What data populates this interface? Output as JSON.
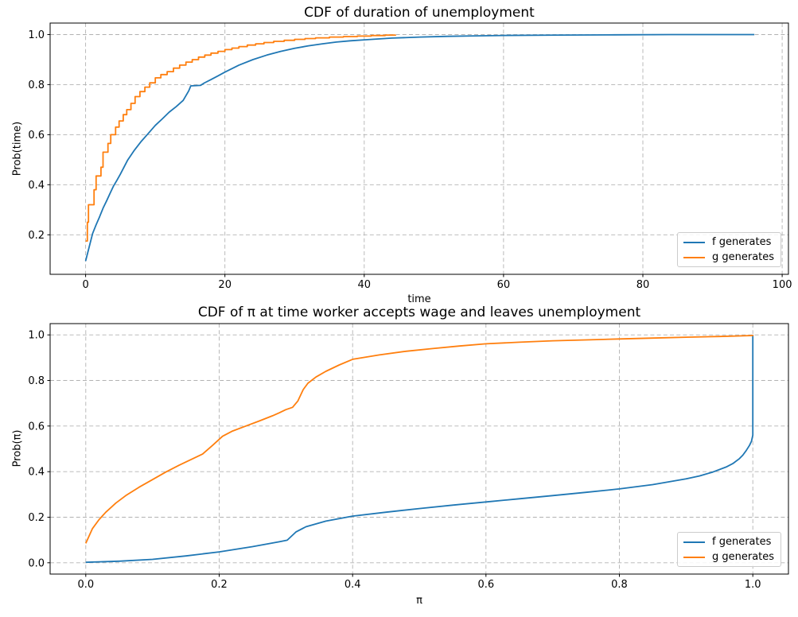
{
  "figure": {
    "background": "#ffffff"
  },
  "chart_data": [
    {
      "type": "line",
      "name": "cdf-duration-unemployment",
      "title": "CDF of duration of unemployment",
      "xlabel": "time",
      "ylabel": "Prob(time)",
      "xlim": [
        -5.1,
        100.9
      ],
      "ylim": [
        0.042,
        1.046
      ],
      "grid": true,
      "legend_position": "lower right",
      "xticks": {
        "values": [
          0,
          20,
          40,
          60,
          80,
          100
        ],
        "labels": [
          "0",
          "20",
          "40",
          "60",
          "80",
          "100"
        ]
      },
      "yticks": {
        "values": [
          0.2,
          0.4,
          0.6,
          0.8,
          1.0
        ],
        "labels": [
          "0.2",
          "0.4",
          "0.6",
          "0.8",
          "1.0"
        ]
      },
      "series": [
        {
          "name": "f generates",
          "color": "#1f77b4",
          "step": false,
          "x": [
            0,
            0.5,
            1,
            1.5,
            2,
            2.5,
            3,
            3.5,
            4,
            4.5,
            5,
            6,
            7,
            8,
            9,
            10,
            11,
            12,
            13,
            14,
            14.8,
            15.1,
            16.5,
            17,
            18,
            19,
            20,
            22,
            24,
            26,
            28,
            30,
            32,
            34,
            36,
            38,
            40,
            44,
            48,
            52,
            56,
            60,
            68,
            76,
            84,
            96
          ],
          "y": [
            0.095,
            0.15,
            0.205,
            0.24,
            0.272,
            0.306,
            0.335,
            0.365,
            0.395,
            0.418,
            0.443,
            0.497,
            0.538,
            0.574,
            0.605,
            0.637,
            0.663,
            0.69,
            0.712,
            0.737,
            0.775,
            0.795,
            0.797,
            0.806,
            0.82,
            0.835,
            0.85,
            0.878,
            0.9,
            0.918,
            0.933,
            0.945,
            0.955,
            0.963,
            0.97,
            0.975,
            0.979,
            0.986,
            0.99,
            0.993,
            0.995,
            0.9965,
            0.998,
            0.999,
            1.0,
            1.0
          ]
        },
        {
          "name": "g generates",
          "color": "#ff7f0e",
          "step": true,
          "x": [
            0,
            0.25,
            0.4,
            1.2,
            1.5,
            2.2,
            2.5,
            3.2,
            3.6,
            4.3,
            4.8,
            5.4,
            5.9,
            6.5,
            7.1,
            7.8,
            8.5,
            9.2,
            10,
            10.8,
            11.7,
            12.6,
            13.5,
            14.4,
            15.3,
            16.2,
            17.1,
            18,
            19,
            20,
            21,
            22,
            23.2,
            24.4,
            25.6,
            27,
            28.5,
            30,
            31.5,
            33,
            35,
            37,
            39,
            41,
            43,
            44.5
          ],
          "y": [
            0.175,
            0.25,
            0.32,
            0.38,
            0.435,
            0.47,
            0.53,
            0.565,
            0.6,
            0.63,
            0.655,
            0.68,
            0.7,
            0.725,
            0.752,
            0.772,
            0.79,
            0.807,
            0.827,
            0.84,
            0.852,
            0.866,
            0.878,
            0.89,
            0.9,
            0.91,
            0.918,
            0.926,
            0.933,
            0.94,
            0.946,
            0.952,
            0.958,
            0.963,
            0.968,
            0.973,
            0.977,
            0.981,
            0.984,
            0.987,
            0.99,
            0.992,
            0.994,
            0.996,
            0.998,
            0.999
          ]
        }
      ]
    },
    {
      "type": "line",
      "name": "cdf-pi-at-acceptance",
      "title": "CDF of π at time worker accepts wage and leaves unemployment",
      "xlabel": "π",
      "ylabel": "Prob(π)",
      "xlim": [
        -0.0535,
        1.0535
      ],
      "ylim": [
        -0.0495,
        1.0495
      ],
      "grid": true,
      "legend_position": "lower right",
      "xticks": {
        "values": [
          0.0,
          0.2,
          0.4,
          0.6,
          0.8,
          1.0
        ],
        "labels": [
          "0.0",
          "0.2",
          "0.4",
          "0.6",
          "0.8",
          "1.0"
        ]
      },
      "yticks": {
        "values": [
          0.0,
          0.2,
          0.4,
          0.6,
          0.8,
          1.0
        ],
        "labels": [
          "0.0",
          "0.2",
          "0.4",
          "0.6",
          "0.8",
          "1.0"
        ]
      },
      "series": [
        {
          "name": "f generates",
          "color": "#1f77b4",
          "step": false,
          "x": [
            0,
            0.05,
            0.1,
            0.15,
            0.2,
            0.25,
            0.29,
            0.302,
            0.315,
            0.33,
            0.36,
            0.4,
            0.45,
            0.5,
            0.55,
            0.6,
            0.65,
            0.7,
            0.75,
            0.8,
            0.85,
            0.9,
            0.92,
            0.94,
            0.96,
            0.97,
            0.98,
            0.985,
            0.99,
            0.995,
            0.998,
            1.0,
            1.0
          ],
          "y": [
            0.002,
            0.007,
            0.015,
            0.03,
            0.048,
            0.071,
            0.092,
            0.099,
            0.135,
            0.158,
            0.183,
            0.205,
            0.222,
            0.238,
            0.253,
            0.267,
            0.281,
            0.295,
            0.309,
            0.324,
            0.343,
            0.368,
            0.381,
            0.398,
            0.42,
            0.435,
            0.457,
            0.472,
            0.492,
            0.515,
            0.533,
            0.56,
            1.0
          ]
        },
        {
          "name": "g generates",
          "color": "#ff7f0e",
          "step": false,
          "x": [
            0,
            0.01,
            0.02,
            0.03,
            0.045,
            0.06,
            0.08,
            0.1,
            0.12,
            0.14,
            0.16,
            0.175,
            0.19,
            0.205,
            0.22,
            0.24,
            0.26,
            0.28,
            0.29,
            0.3,
            0.31,
            0.318,
            0.326,
            0.333,
            0.345,
            0.36,
            0.38,
            0.4,
            0.44,
            0.48,
            0.52,
            0.56,
            0.6,
            0.65,
            0.7,
            0.75,
            0.8,
            0.85,
            0.9,
            0.95,
            1.0,
            1.0
          ],
          "y": [
            0.085,
            0.15,
            0.19,
            0.222,
            0.262,
            0.295,
            0.332,
            0.365,
            0.398,
            0.428,
            0.456,
            0.477,
            0.515,
            0.555,
            0.578,
            0.6,
            0.622,
            0.645,
            0.658,
            0.672,
            0.682,
            0.71,
            0.76,
            0.788,
            0.815,
            0.84,
            0.868,
            0.893,
            0.912,
            0.928,
            0.94,
            0.951,
            0.961,
            0.968,
            0.974,
            0.978,
            0.982,
            0.986,
            0.99,
            0.993,
            0.997,
            1.0
          ]
        }
      ]
    }
  ]
}
